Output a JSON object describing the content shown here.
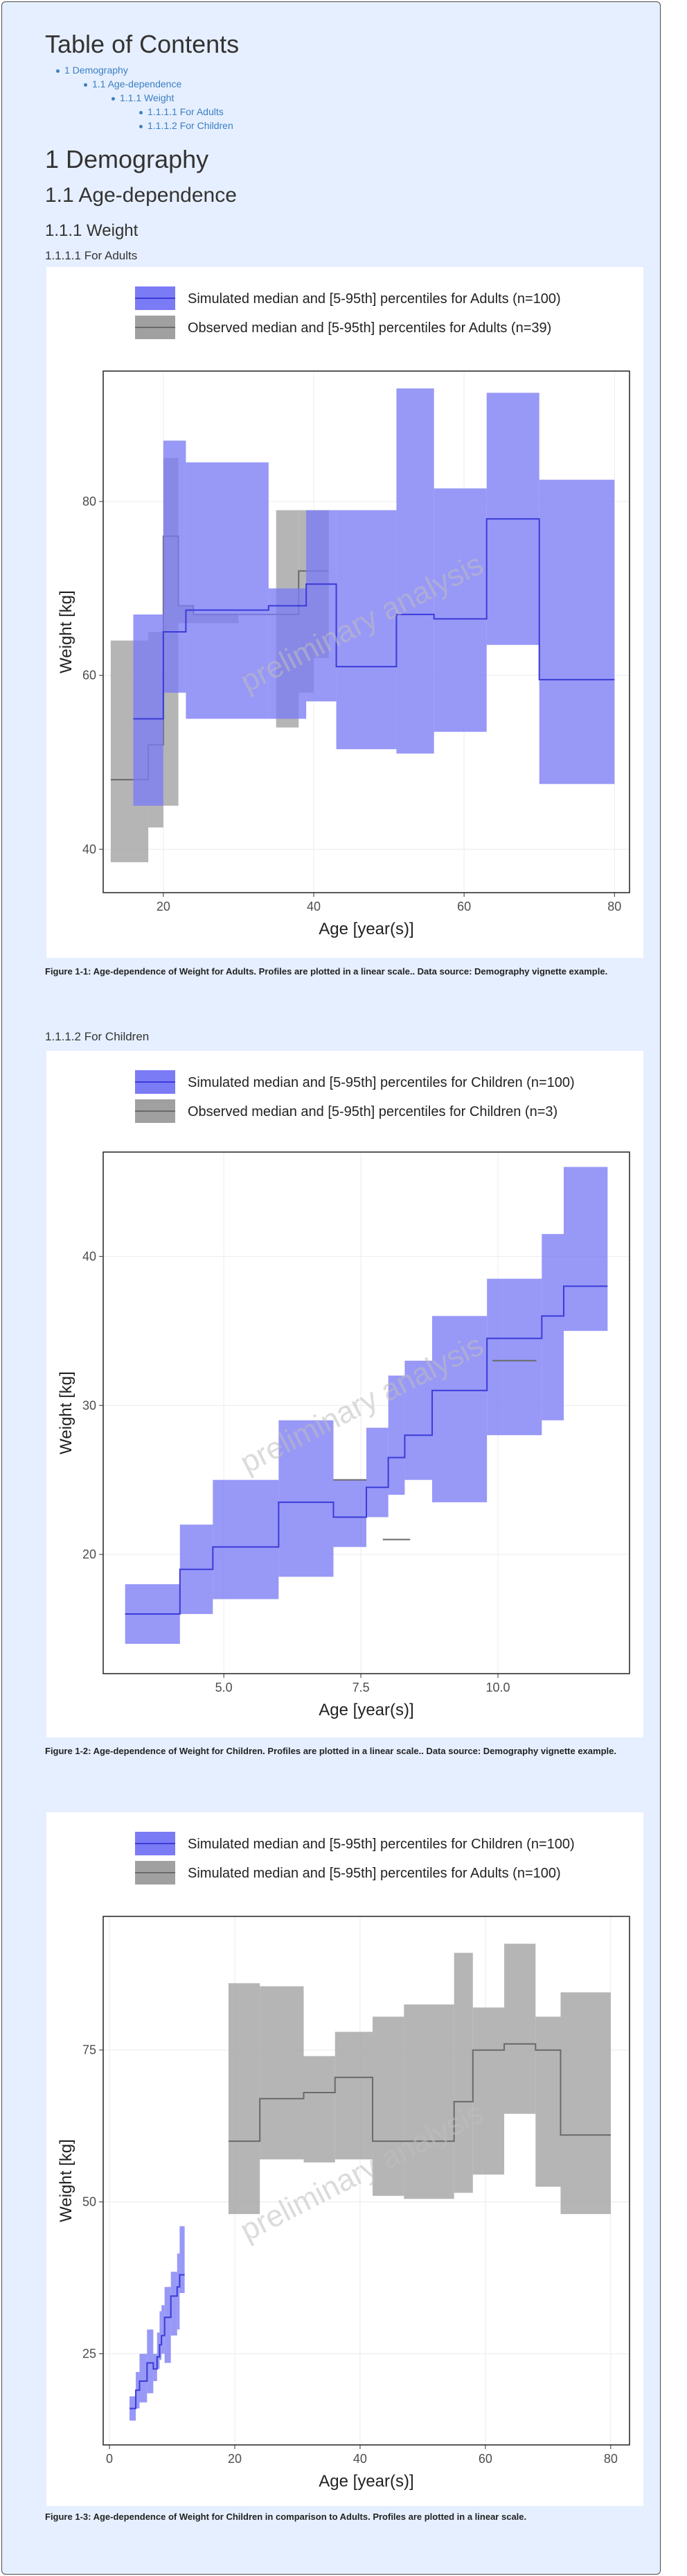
{
  "toc": {
    "title": "Table of Contents",
    "items": [
      {
        "label": "1 Demography",
        "level": 0
      },
      {
        "label": "1.1 Age-dependence",
        "level": 1
      },
      {
        "label": "1.1.1 Weight",
        "level": 2
      },
      {
        "label": "1.1.1.1 For Adults",
        "level": 3
      },
      {
        "label": "1.1.1.2 For Children",
        "level": 3
      }
    ]
  },
  "headings": {
    "h1": "1 Demography",
    "h2": "1.1 Age-dependence",
    "h3": "1.1.1 Weight",
    "adults": "1.1.1.1 For Adults",
    "children": "1.1.1.2 For Children"
  },
  "captions": {
    "fig1": "Figure 1-1: Age-dependence of Weight for Adults. Profiles are plotted in a linear scale.. Data source: Demography vignette example.",
    "fig2": "Figure 1-2: Age-dependence of Weight for Children. Profiles are plotted in a linear scale.. Data source: Demography vignette example.",
    "fig3": "Figure 1-3: Age-dependence of Weight for Children in comparison to Adults. Profiles are plotted in a linear scale."
  },
  "colors": {
    "simulated": "#7b7bf5",
    "simulated_line": "#3b3bd8",
    "observed": "#a0a0a0",
    "observed_line": "#6a6a6a"
  },
  "chart_data": [
    {
      "type": "area",
      "xlabel": "Age [year(s)]",
      "ylabel": "Weight [kg]",
      "watermark": "preliminary analysis",
      "xlim": [
        12,
        82
      ],
      "ylim": [
        35,
        95
      ],
      "xticks": [
        20,
        40,
        60,
        80
      ],
      "yticks": [
        40,
        60,
        80
      ],
      "grid": true,
      "legend": "top",
      "series": [
        {
          "name": "Observed median and [5-95th] percentiles for Adults (n=39)",
          "kind": "observed",
          "bins": [
            [
              13,
              18,
              38.5,
              48,
              64
            ],
            [
              18,
              20,
              42.5,
              52,
              65
            ],
            [
              20,
              22,
              45,
              76,
              85
            ],
            [
              22,
              24,
              66,
              68,
              68
            ],
            [
              24,
              30,
              66,
              67,
              67
            ],
            [
              30,
              35,
              67,
              67,
              67
            ],
            [
              35,
              38,
              54,
              67,
              79
            ],
            [
              38,
              40,
              58,
              72,
              79
            ],
            [
              40,
              42,
              62,
              72,
              79
            ]
          ]
        },
        {
          "name": "Simulated median and [5-95th] percentiles for Adults (n=100)",
          "kind": "simulated",
          "bins": [
            [
              16,
              20,
              45,
              55,
              67
            ],
            [
              20,
              23,
              58,
              65,
              87
            ],
            [
              23,
              34,
              55,
              67.5,
              84.5
            ],
            [
              34,
              39,
              55,
              68,
              70
            ],
            [
              39,
              43,
              57,
              70.5,
              79
            ],
            [
              43,
              51,
              51.5,
              61,
              79
            ],
            [
              51,
              56,
              51,
              67,
              93
            ],
            [
              56,
              63,
              53.5,
              66.5,
              81.5
            ],
            [
              63,
              70,
              63.5,
              78,
              92.5
            ],
            [
              70,
              80,
              47.5,
              59.5,
              82.5
            ]
          ]
        }
      ]
    },
    {
      "type": "area",
      "xlabel": "Age [year(s)]",
      "ylabel": "Weight [kg]",
      "watermark": "preliminary analysis",
      "xlim": [
        2.8,
        12.4
      ],
      "ylim": [
        12,
        47
      ],
      "xticks": [
        5.0,
        7.5,
        10.0
      ],
      "xtick_labels": [
        "5.0",
        "7.5",
        "10.0"
      ],
      "yticks": [
        20,
        30,
        40
      ],
      "grid": true,
      "legend": "top",
      "series": [
        {
          "name": "Simulated median and [5-95th] percentiles for Children (n=100)",
          "kind": "simulated",
          "bins": [
            [
              3.2,
              4.2,
              14,
              16,
              18
            ],
            [
              4.2,
              4.8,
              16,
              19,
              22
            ],
            [
              4.8,
              6.0,
              17,
              20.5,
              25
            ],
            [
              6.0,
              7.0,
              18.5,
              23.5,
              29
            ],
            [
              7.0,
              7.6,
              20.5,
              22.5,
              25
            ],
            [
              7.6,
              8.0,
              22.5,
              24.5,
              28.5
            ],
            [
              8.0,
              8.3,
              24,
              26.5,
              32
            ],
            [
              8.3,
              8.8,
              25,
              28,
              33
            ],
            [
              8.8,
              9.8,
              23.5,
              31,
              36
            ],
            [
              9.8,
              10.8,
              28,
              34.5,
              38.5
            ],
            [
              10.8,
              11.2,
              29,
              36,
              41.5
            ],
            [
              11.2,
              12.0,
              35,
              38,
              46
            ]
          ]
        },
        {
          "name": "Observed median and [5-95th] percentiles for Children (n=3)",
          "kind": "observed",
          "bins": [
            [
              7.0,
              7.6,
              25,
              25,
              25
            ],
            [
              7.9,
              8.4,
              21,
              21,
              21
            ],
            [
              9.9,
              10.7,
              33,
              33,
              33
            ]
          ]
        }
      ]
    },
    {
      "type": "area",
      "xlabel": "Age [year(s)]",
      "ylabel": "Weight [kg]",
      "watermark": "preliminary analysis",
      "xlim": [
        -1,
        83
      ],
      "ylim": [
        10,
        97
      ],
      "xticks": [
        0,
        20,
        40,
        60,
        80
      ],
      "yticks": [
        25,
        50,
        75
      ],
      "grid": true,
      "legend": "top",
      "series": [
        {
          "name": "Simulated median and [5-95th] percentiles for Adults (n=100)",
          "kind": "observed",
          "bins": [
            [
              19,
              24,
              48,
              60,
              86
            ],
            [
              24,
              31,
              57,
              67,
              85.5
            ],
            [
              31,
              36,
              56.5,
              68,
              74
            ],
            [
              36,
              42,
              57,
              70.5,
              78
            ],
            [
              42,
              47,
              51,
              60,
              80.5
            ],
            [
              47,
              55,
              50.5,
              60,
              82.5
            ],
            [
              55,
              58,
              51.5,
              66.5,
              91
            ],
            [
              58,
              63,
              54.5,
              75,
              82
            ],
            [
              63,
              68,
              64.5,
              76,
              92.5
            ],
            [
              68,
              72,
              52.5,
              75,
              80.5
            ],
            [
              72,
              80,
              48,
              61,
              84.5
            ]
          ]
        },
        {
          "name": "Simulated median and [5-95th] percentiles for Children (n=100)",
          "kind": "simulated",
          "bins": [
            [
              3.2,
              4.2,
              14,
              16,
              18
            ],
            [
              4.2,
              4.8,
              16,
              19,
              22
            ],
            [
              4.8,
              6.0,
              17,
              20.5,
              25
            ],
            [
              6.0,
              7.0,
              18.5,
              23.5,
              29
            ],
            [
              7.0,
              7.6,
              20.5,
              22.5,
              25
            ],
            [
              7.6,
              8.0,
              22.5,
              24.5,
              28.5
            ],
            [
              8.0,
              8.3,
              24,
              26.5,
              32
            ],
            [
              8.3,
              8.8,
              25,
              28,
              33
            ],
            [
              8.8,
              9.8,
              23.5,
              31,
              36
            ],
            [
              9.8,
              10.8,
              28,
              34.5,
              38.5
            ],
            [
              10.8,
              11.2,
              29,
              36,
              41.5
            ],
            [
              11.2,
              12.0,
              35,
              38,
              46
            ]
          ]
        }
      ]
    }
  ]
}
